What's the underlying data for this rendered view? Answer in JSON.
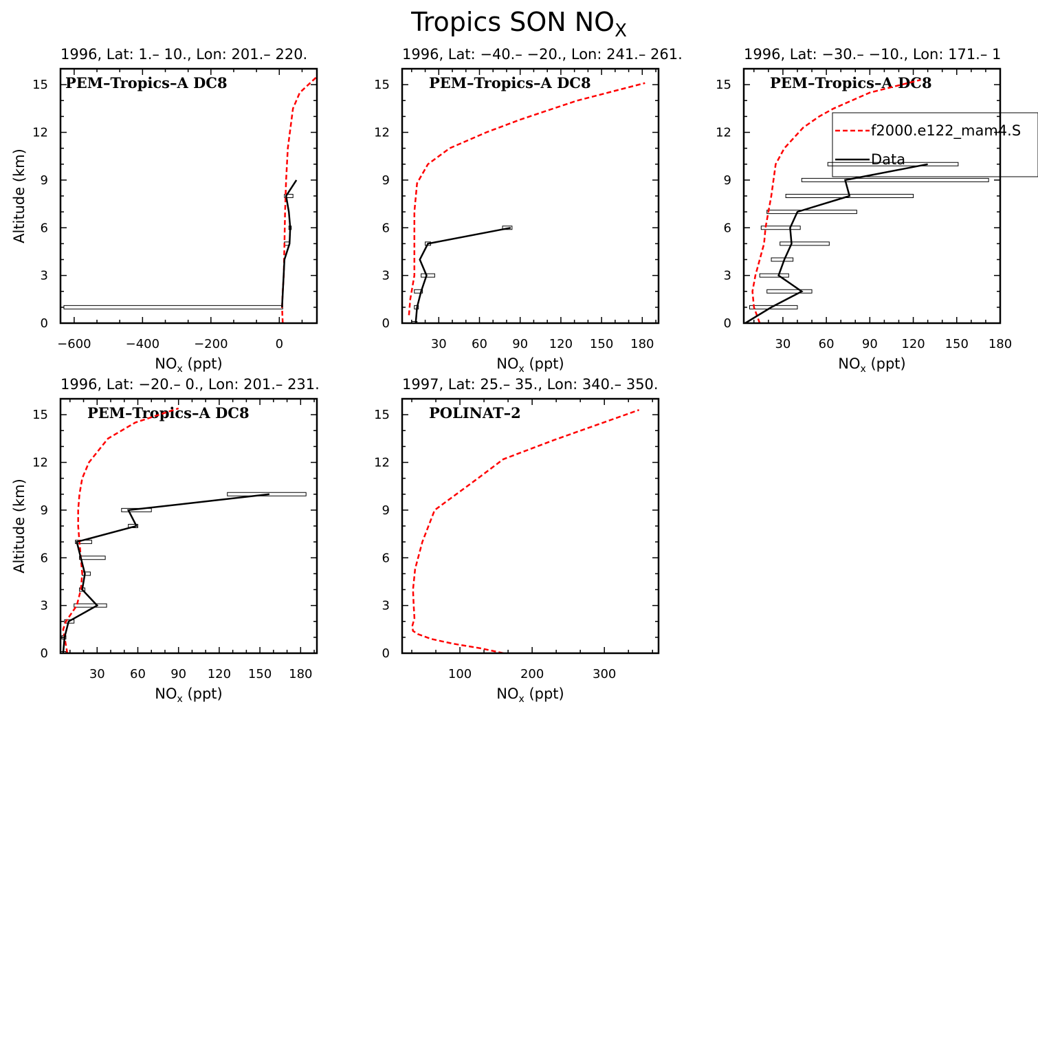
{
  "figure_title": {
    "main": "Tropics SON NO",
    "sub": "X"
  },
  "legend": {
    "model_label": "f2000.e122_mam4.S",
    "data_label": "Data",
    "model_color": "#ff0000",
    "data_color": "#000000"
  },
  "chart_data": [
    {
      "type": "line",
      "title": "1996, Lat: 1.– 10., Lon: 201.– 220.",
      "campaign": "PEM–Tropics–A DC8",
      "xlabel": "NO",
      "xlabel_sub": "x",
      "xlabel_tail": " (ppt)",
      "ylabel": "Altitude (km)",
      "xlim": [
        -640,
        110
      ],
      "ylim": [
        0,
        16
      ],
      "xticks": [
        -600,
        -400,
        -200,
        0
      ],
      "xtick_labels": [
        "−600",
        "−400",
        "−200",
        "0"
      ],
      "yticks": [
        0,
        3,
        6,
        9,
        12,
        15
      ],
      "model": {
        "name": "f2000.e122_mam4.S",
        "x": [
          10,
          8,
          10,
          13,
          15,
          17,
          20,
          25,
          40,
          60,
          110
        ],
        "y": [
          0,
          1,
          2,
          3,
          5,
          7,
          9,
          11,
          13.5,
          14.5,
          15.5
        ]
      },
      "data": {
        "name": "Data",
        "alt": [
          1,
          4,
          5,
          6,
          7,
          8,
          9
        ],
        "x": [
          8,
          15,
          30,
          32,
          28,
          20,
          50
        ]
      },
      "boxes": [
        {
          "alt": 1,
          "x1": -630,
          "x2": 10
        },
        {
          "alt": 5,
          "x1": 15,
          "x2": 30
        },
        {
          "alt": 6,
          "x1": 28,
          "x2": 35
        },
        {
          "alt": 8,
          "x1": 15,
          "x2": 40
        }
      ]
    },
    {
      "type": "line",
      "title": "1996, Lat: −40.– −20., Lon: 241.– 261.",
      "campaign": "PEM–Tropics–A DC8",
      "xlabel": "NO",
      "xlabel_sub": "x",
      "xlabel_tail": " (ppt)",
      "ylabel": "",
      "xlim": [
        3,
        192
      ],
      "ylim": [
        0,
        16
      ],
      "xticks": [
        30,
        60,
        90,
        120,
        150,
        180
      ],
      "xtick_labels": [
        "30",
        "60",
        "90",
        "120",
        "150",
        "180"
      ],
      "yticks": [
        0,
        3,
        6,
        9,
        12,
        15
      ],
      "model": {
        "name": "f2000.e122_mam4.S",
        "x": [
          8,
          9,
          11,
          12,
          12,
          12,
          12,
          14,
          22,
          38,
          65,
          90,
          132,
          182
        ],
        "y": [
          0.5,
          1.5,
          2.5,
          3,
          4,
          5,
          7,
          8.8,
          10,
          11,
          12,
          12.8,
          14,
          15.1
        ]
      },
      "data": {
        "name": "Data",
        "alt": [
          0,
          1,
          2,
          3,
          4,
          5,
          6
        ],
        "x": [
          13,
          14,
          17,
          21,
          16,
          22,
          83
        ]
      },
      "boxes": [
        {
          "alt": 0,
          "x1": 10,
          "x2": 14
        },
        {
          "alt": 1,
          "x1": 12,
          "x2": 15
        },
        {
          "alt": 2,
          "x1": 12,
          "x2": 18
        },
        {
          "alt": 3,
          "x1": 17,
          "x2": 27
        },
        {
          "alt": 5,
          "x1": 20,
          "x2": 24
        },
        {
          "alt": 6,
          "x1": 77,
          "x2": 84
        }
      ]
    },
    {
      "type": "line",
      "title": "1996, Lat: −30.– −10., Lon: 171.– 1",
      "campaign": "PEM–Tropics–A DC8",
      "xlabel": "NO",
      "xlabel_sub": "x",
      "xlabel_tail": " (ppt)",
      "ylabel": "",
      "xlim": [
        3,
        180
      ],
      "ylim": [
        0,
        16
      ],
      "xticks": [
        30,
        60,
        90,
        120,
        150,
        180
      ],
      "xtick_labels": [
        "30",
        "60",
        "90",
        "120",
        "150",
        "180"
      ],
      "yticks": [
        0,
        3,
        6,
        9,
        12,
        15
      ],
      "model": {
        "name": "f2000.e122_mam4.S",
        "x": [
          14,
          10,
          9,
          11,
          14,
          17,
          18,
          20,
          22,
          25,
          31,
          44,
          55,
          65,
          90,
          125
        ],
        "y": [
          0,
          1,
          2,
          3,
          4,
          5,
          6,
          7,
          8,
          10,
          11,
          12.3,
          13,
          13.5,
          14.5,
          15.3
        ]
      },
      "data": {
        "name": "Data",
        "alt": [
          0,
          1,
          2,
          3,
          4,
          5,
          6,
          7,
          8,
          9,
          10
        ],
        "x": [
          4,
          22,
          43,
          27,
          31,
          36,
          35,
          40,
          76,
          73,
          130
        ]
      },
      "boxes": [
        {
          "alt": 1,
          "x1": 7,
          "x2": 40
        },
        {
          "alt": 2,
          "x1": 19,
          "x2": 50
        },
        {
          "alt": 3,
          "x1": 14,
          "x2": 34
        },
        {
          "alt": 4,
          "x1": 22,
          "x2": 37
        },
        {
          "alt": 5,
          "x1": 28,
          "x2": 62
        },
        {
          "alt": 6,
          "x1": 15,
          "x2": 42
        },
        {
          "alt": 7,
          "x1": 19,
          "x2": 81
        },
        {
          "alt": 8,
          "x1": 32,
          "x2": 120
        },
        {
          "alt": 9,
          "x1": 43,
          "x2": 172
        },
        {
          "alt": 10,
          "x1": 61,
          "x2": 151
        }
      ]
    },
    {
      "type": "line",
      "title": "1996, Lat: −20.– 0., Lon: 201.– 231.",
      "campaign": "PEM–Tropics–A DC8",
      "xlabel": "NO",
      "xlabel_sub": "x",
      "xlabel_tail": " (ppt)",
      "ylabel": "Altitude (km)",
      "xlim": [
        3,
        192
      ],
      "ylim": [
        0,
        16
      ],
      "xticks": [
        30,
        60,
        90,
        120,
        150,
        180
      ],
      "xtick_labels": [
        "30",
        "60",
        "90",
        "120",
        "150",
        "180"
      ],
      "yticks": [
        0,
        3,
        6,
        9,
        12,
        15
      ],
      "model": {
        "name": "f2000.e122_mam4.S",
        "x": [
          8,
          6,
          5,
          7,
          11,
          15,
          18,
          19,
          18,
          17,
          16,
          16,
          17,
          19,
          24,
          38,
          58,
          90
        ],
        "y": [
          0,
          1,
          1.5,
          2,
          2.5,
          3,
          4,
          5,
          6,
          7,
          8,
          9,
          10,
          11,
          12,
          13.5,
          14.5,
          15.4
        ]
      },
      "data": {
        "name": "Data",
        "alt": [
          0,
          1,
          2,
          3,
          4,
          5,
          6,
          7,
          8,
          9,
          10
        ],
        "x": [
          5,
          6,
          9,
          30,
          19,
          21,
          18,
          15,
          59,
          53,
          157
        ]
      },
      "boxes": [
        {
          "alt": 0,
          "x1": 3,
          "x2": 7
        },
        {
          "alt": 1,
          "x1": 4,
          "x2": 7
        },
        {
          "alt": 2,
          "x1": 6,
          "x2": 13
        },
        {
          "alt": 3,
          "x1": 13,
          "x2": 37
        },
        {
          "alt": 4,
          "x1": 17,
          "x2": 21
        },
        {
          "alt": 5,
          "x1": 19,
          "x2": 25
        },
        {
          "alt": 6,
          "x1": 17,
          "x2": 36
        },
        {
          "alt": 7,
          "x1": 14,
          "x2": 26
        },
        {
          "alt": 8,
          "x1": 53,
          "x2": 60
        },
        {
          "alt": 9,
          "x1": 48,
          "x2": 70
        },
        {
          "alt": 10,
          "x1": 126,
          "x2": 184
        }
      ]
    },
    {
      "type": "line",
      "title": "1997, Lat: 25.– 35., Lon: 340.– 350.",
      "campaign": "POLINAT–2",
      "xlabel": "NO",
      "xlabel_sub": "x",
      "xlabel_tail": " (ppt)",
      "ylabel": "",
      "xlim": [
        20,
        375
      ],
      "ylim": [
        0,
        16
      ],
      "xticks": [
        100,
        200,
        300
      ],
      "xtick_labels": [
        "100",
        "200",
        "300"
      ],
      "yticks": [
        0,
        3,
        6,
        9,
        12,
        15
      ],
      "model": {
        "name": "f2000.e122_mam4.S",
        "x": [
          160,
          130,
          90,
          60,
          42,
          35,
          34,
          37,
          36,
          35,
          38,
          48,
          65,
          95,
          125,
          160,
          230,
          348
        ],
        "y": [
          0,
          0.3,
          0.6,
          0.9,
          1.2,
          1.4,
          1.7,
          2.2,
          3,
          4,
          5.3,
          7,
          9,
          10,
          11,
          12.2,
          13.4,
          15.3
        ]
      },
      "data": {
        "name": "Data",
        "alt": [],
        "x": []
      },
      "boxes": []
    }
  ]
}
